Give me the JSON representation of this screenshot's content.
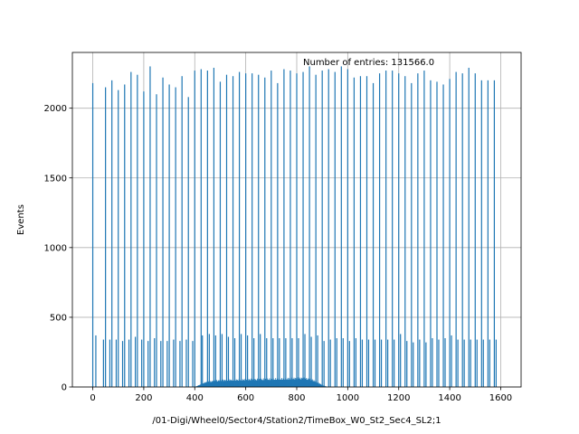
{
  "chart_data": {
    "type": "bar",
    "title": "",
    "xlabel": "/01-Digi/Wheel0/Sector4/Station2/TimeBox_W0_St2_Sec4_SL2;1",
    "ylabel": "Events",
    "annotation": "Number of entries: 131566.0",
    "xlim": [
      -80,
      1680
    ],
    "ylim": [
      0,
      2400
    ],
    "xticks": [
      0,
      200,
      400,
      600,
      800,
      1000,
      1200,
      1400,
      1600
    ],
    "yticks": [
      0,
      500,
      1000,
      1500,
      2000
    ],
    "grid": true,
    "bar_color": "#1f77b4",
    "tall_spikes": {
      "x": [
        0,
        25,
        50,
        75,
        100,
        125,
        150,
        175,
        200,
        225,
        250,
        275,
        300,
        325,
        350,
        375,
        400,
        425,
        450,
        475,
        500,
        525,
        550,
        575,
        600,
        625,
        650,
        675,
        700,
        725,
        750,
        775,
        800,
        825,
        850,
        875,
        900,
        925,
        950,
        975,
        1000,
        1025,
        1050,
        1075,
        1100,
        1125,
        1150,
        1175,
        1200,
        1225,
        1250,
        1275,
        1300,
        1325,
        1350,
        1375,
        1400,
        1425,
        1450,
        1475,
        1500,
        1525,
        1550,
        1575
      ],
      "values": [
        2180,
        0,
        2150,
        2200,
        2130,
        2170,
        2260,
        2240,
        2120,
        2300,
        2100,
        2220,
        2170,
        2150,
        2230,
        2080,
        2270,
        2280,
        2270,
        2290,
        2190,
        2240,
        2230,
        2260,
        2250,
        2250,
        2240,
        2220,
        2270,
        2180,
        2280,
        2270,
        2250,
        2260,
        2300,
        2240,
        2270,
        2280,
        2260,
        2300,
        2280,
        2220,
        2230,
        2230,
        2180,
        2250,
        2270,
        2270,
        2250,
        2230,
        2180,
        2250,
        2270,
        2200,
        2190,
        2170,
        2210,
        2260,
        2250,
        2290,
        2250,
        2200,
        2200,
        2200
      ]
    },
    "short_spikes": {
      "x": [
        12,
        42,
        67,
        92,
        117,
        142,
        167,
        192,
        217,
        242,
        267,
        292,
        317,
        342,
        367,
        392,
        430,
        457,
        482,
        507,
        532,
        557,
        582,
        607,
        632,
        657,
        682,
        707,
        732,
        757,
        782,
        807,
        832,
        857,
        882,
        907,
        932,
        957,
        982,
        1007,
        1032,
        1057,
        1082,
        1107,
        1132,
        1157,
        1182,
        1207,
        1232,
        1257,
        1282,
        1307,
        1332,
        1357,
        1382,
        1407,
        1432,
        1457,
        1482,
        1507,
        1532,
        1557,
        1582
      ],
      "values": [
        370,
        340,
        340,
        340,
        330,
        340,
        360,
        340,
        330,
        350,
        330,
        330,
        340,
        330,
        340,
        330,
        370,
        380,
        370,
        380,
        360,
        350,
        380,
        370,
        350,
        380,
        350,
        350,
        350,
        350,
        350,
        350,
        380,
        360,
        370,
        330,
        340,
        350,
        350,
        330,
        350,
        340,
        340,
        340,
        340,
        340,
        340,
        380,
        330,
        320,
        340,
        320,
        350,
        340,
        350,
        370,
        340,
        340,
        340,
        340,
        340,
        340,
        340
      ]
    },
    "background_band": {
      "x_start": 400,
      "x_end": 920,
      "x": [
        400,
        420,
        440,
        460,
        480,
        500,
        520,
        540,
        560,
        580,
        600,
        620,
        640,
        660,
        680,
        700,
        720,
        740,
        760,
        780,
        800,
        820,
        840,
        860,
        880,
        900,
        920
      ],
      "values": [
        0,
        15,
        30,
        35,
        40,
        42,
        44,
        45,
        45,
        46,
        47,
        48,
        48,
        49,
        50,
        50,
        52,
        52,
        53,
        54,
        55,
        55,
        52,
        45,
        30,
        12,
        0
      ]
    }
  }
}
